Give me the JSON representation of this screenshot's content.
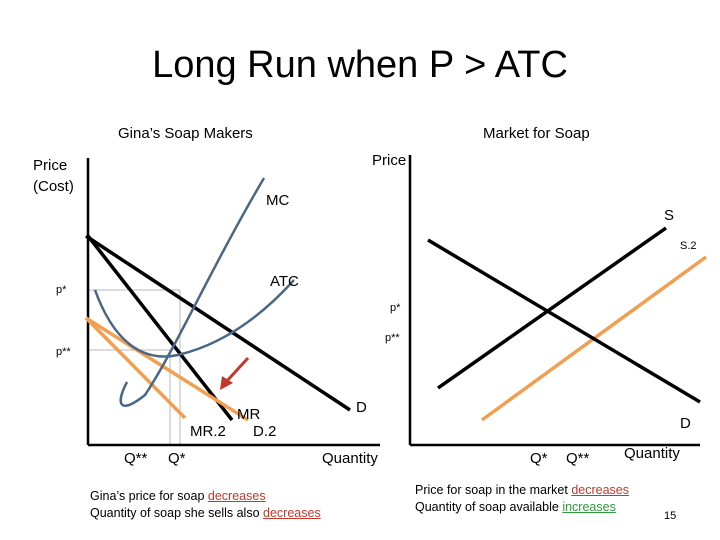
{
  "title": "Long Run when P > ATC",
  "firm": {
    "heading": "Gina’s Soap Makers",
    "y_label_line1": "Price",
    "y_label_line2": "(Cost)",
    "x_label": "Quantity",
    "label_mc": "MC",
    "label_atc": "ATC",
    "label_p1": "p*",
    "label_p2": "p**",
    "label_mr": "MR",
    "label_mr2": "MR.2",
    "label_d": "D",
    "label_d2": "D.2",
    "label_q2": "Q**",
    "label_q1": "Q*"
  },
  "market": {
    "heading": "Market for Soap",
    "y_label": "Price",
    "x_label": "Quantity",
    "label_s": "S",
    "label_s2": "S.2",
    "label_d": "D",
    "label_p1": "p*",
    "label_p2": "p**",
    "label_q1": "Q*",
    "label_q2": "Q**"
  },
  "notes": {
    "left_line1": "Gina’s price for soap ",
    "left_word1": "decreases",
    "left_line2": "Quantity of soap she sells also ",
    "left_word2": "decreases",
    "right_line1": "Price for soap in the market ",
    "right_word1": "decreases",
    "right_line2": "Quantity of soap available ",
    "right_word2": "increases"
  },
  "slide_number": "15",
  "colors": {
    "mc": "#4a6785",
    "atc": "#4a6785",
    "shifted": "#f0a050",
    "arrow": "#c0392b",
    "guide": "#b8b8b8"
  }
}
